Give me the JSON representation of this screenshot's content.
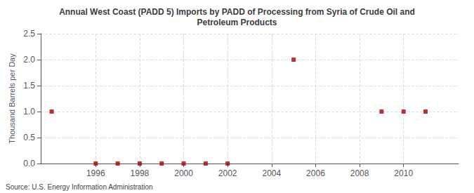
{
  "chart_data": {
    "type": "scatter",
    "title": "Annual West Coast (PADD 5) Imports by PADD of Processing from Syria of Crude Oil and\nPetroleum Products",
    "ylabel": "Thousand Barrels per Day",
    "source": "Source: U.S. Energy Information Administration",
    "x": [
      1994,
      1996,
      1997,
      1998,
      1999,
      2000,
      2001,
      2002,
      2005,
      2009,
      2010,
      2011
    ],
    "values": [
      1.0,
      0.0,
      0.0,
      0.0,
      0.0,
      0.0,
      0.0,
      0.0,
      2.0,
      1.0,
      1.0,
      1.0
    ],
    "color": "#aa0000",
    "marker": "square",
    "xlim": [
      1993.5,
      2012.5
    ],
    "xticks": [
      1996,
      1998,
      2000,
      2002,
      2004,
      2006,
      2008,
      2010
    ],
    "ylim": [
      0.0,
      2.5
    ],
    "yticks": [
      {
        "value": 0.0,
        "label": "0.0"
      },
      0.5,
      {
        "value": 1.0,
        "label": "1.0"
      },
      1.5,
      {
        "value": 2.0,
        "label": "2.0"
      },
      2.5
    ],
    "grid": true
  }
}
